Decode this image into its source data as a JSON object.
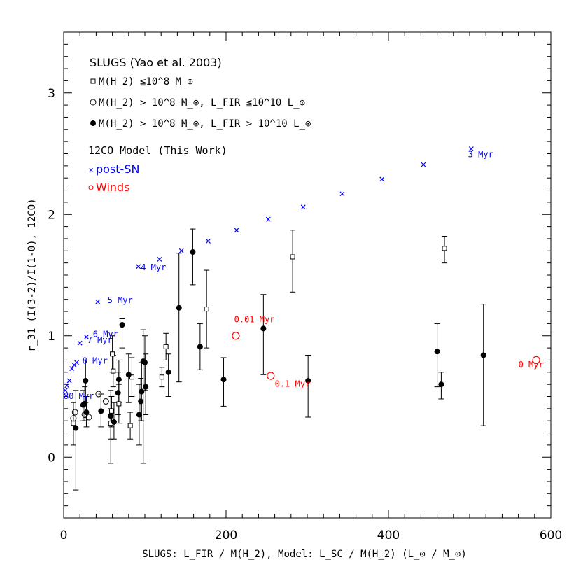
{
  "chart_data": {
    "type": "scatter",
    "xlabel": "SLUGS: L_FIR / M(H_2), Model: L_SC / M(H_2) (L_⊙ / M_⊙)",
    "ylabel": "r_31 (I(3-2)/I(1-0), 12CO)",
    "xlim": [
      0,
      600
    ],
    "ylim": [
      -0.5,
      3.5
    ],
    "xticks": [
      0,
      200,
      400,
      600
    ],
    "yticks": [
      0,
      1,
      2,
      3
    ],
    "grid": false,
    "legend": {
      "heading_slugs": "SLUGS (Yao et al. 2003)",
      "slugs_small": "M(H_2) ≦10^8 M_⊙",
      "slugs_open": "M(H_2) > 10^8 M_⊙, L_FIR ≦10^10 L_⊙",
      "slugs_filled": "M(H_2) > 10^8 M_⊙, L_FIR > 10^10 L_⊙",
      "heading_model": "12CO Model (This Work)",
      "post_sn": "post-SN",
      "winds": "Winds"
    },
    "colors": {
      "post_sn": "#0000ff",
      "winds": "#ff0000",
      "slugs": "#000000"
    },
    "series": [
      {
        "name": "post-SN",
        "marker": "cross",
        "x": [
          2,
          4,
          7,
          10,
          13,
          16,
          20,
          28,
          42,
          92,
          118,
          145,
          178,
          213,
          252,
          295,
          343,
          392,
          443,
          502
        ],
        "y": [
          0.55,
          0.59,
          0.63,
          0.73,
          0.76,
          0.78,
          0.94,
          0.99,
          1.28,
          1.57,
          1.63,
          1.7,
          1.78,
          1.87,
          1.96,
          2.06,
          2.17,
          2.29,
          2.41,
          2.54
        ],
        "labels": [
          {
            "text": "80 Myr",
            "x": 0,
            "y": 0.48
          },
          {
            "text": "8 Myr",
            "x": 23,
            "y": 0.77
          },
          {
            "text": "7 Myr",
            "x": 29,
            "y": 0.94
          },
          {
            "text": "6 Myr",
            "x": 36,
            "y": 0.99
          },
          {
            "text": "5 Myr",
            "x": 54,
            "y": 1.27
          },
          {
            "text": "4 Myr",
            "x": 95,
            "y": 1.54
          },
          {
            "text": "3 Myr",
            "x": 498,
            "y": 2.47
          }
        ]
      },
      {
        "name": "Winds",
        "marker": "open-circle",
        "x": [
          212,
          255,
          582
        ],
        "y": [
          1.0,
          0.67,
          0.8
        ],
        "labels": [
          {
            "text": "0.01 Myr",
            "x": 210,
            "y": 1.11
          },
          {
            "text": "0.1 Myr",
            "x": 260,
            "y": 0.58
          },
          {
            "text": "0 Myr",
            "x": 560,
            "y": 0.74
          }
        ]
      },
      {
        "name": "M(H_2) ≦10^8 M_⊙",
        "marker": "open-square",
        "points": [
          {
            "x": 12,
            "y": 0.28,
            "lo": 0.1,
            "hi": 0.45
          },
          {
            "x": 58,
            "y": 0.28,
            "lo": 0.15,
            "hi": 0.4
          },
          {
            "x": 59,
            "y": 0.38,
            "lo": 0.25,
            "hi": 0.5
          },
          {
            "x": 60,
            "y": 0.85,
            "lo": 0.7,
            "hi": 1.0
          },
          {
            "x": 61,
            "y": 0.71,
            "lo": 0.58,
            "hi": 0.84
          },
          {
            "x": 68,
            "y": 0.44,
            "lo": 0.28,
            "hi": 0.6
          },
          {
            "x": 82,
            "y": 0.26,
            "lo": 0.15,
            "hi": 0.37
          },
          {
            "x": 84,
            "y": 0.66,
            "lo": 0.5,
            "hi": 0.82
          },
          {
            "x": 121,
            "y": 0.66,
            "lo": 0.58,
            "hi": 0.74
          },
          {
            "x": 126,
            "y": 0.91,
            "lo": 0.8,
            "hi": 1.02
          },
          {
            "x": 176,
            "y": 1.22,
            "lo": 0.9,
            "hi": 1.54
          },
          {
            "x": 282,
            "y": 1.65,
            "lo": 1.36,
            "hi": 1.87
          },
          {
            "x": 469,
            "y": 1.72,
            "lo": 1.6,
            "hi": 1.82
          }
        ]
      },
      {
        "name": "M(H_2) > 10^8 M_⊙, L_FIR ≦10^10 L_⊙",
        "marker": "open-circle",
        "points": [
          {
            "x": 12,
            "y": 0.32,
            "lo": 0.32,
            "hi": 0.32
          },
          {
            "x": 14,
            "y": 0.37,
            "lo": 0.37,
            "hi": 0.37
          },
          {
            "x": 26,
            "y": 0.35,
            "lo": 0.35,
            "hi": 0.35
          },
          {
            "x": 31,
            "y": 0.33,
            "lo": 0.33,
            "hi": 0.33
          },
          {
            "x": 43,
            "y": 0.52,
            "lo": 0.52,
            "hi": 0.52
          },
          {
            "x": 52,
            "y": 0.46,
            "lo": 0.46,
            "hi": 0.46
          }
        ]
      },
      {
        "name": "M(H_2) > 10^8 M_⊙, L_FIR > 10^10 L_⊙",
        "marker": "filled-circle",
        "points": [
          {
            "x": 15,
            "y": 0.24,
            "lo": -0.27,
            "hi": 0.55
          },
          {
            "x": 24,
            "y": 0.43,
            "lo": 0.3,
            "hi": 0.55
          },
          {
            "x": 26,
            "y": 0.44,
            "lo": 0.3,
            "hi": 0.58
          },
          {
            "x": 27,
            "y": 0.63,
            "lo": 0.45,
            "hi": 0.8
          },
          {
            "x": 28,
            "y": 0.37,
            "lo": 0.25,
            "hi": 0.5
          },
          {
            "x": 46,
            "y": 0.38,
            "lo": 0.25,
            "hi": 0.52
          },
          {
            "x": 58,
            "y": 0.34,
            "lo": -0.05,
            "hi": 0.55
          },
          {
            "x": 62,
            "y": 0.29,
            "lo": 0.15,
            "hi": 0.45
          },
          {
            "x": 67,
            "y": 0.53,
            "lo": 0.35,
            "hi": 0.7
          },
          {
            "x": 68,
            "y": 0.64,
            "lo": 0.45,
            "hi": 0.8
          },
          {
            "x": 72,
            "y": 1.09,
            "lo": 0.9,
            "hi": 1.14
          },
          {
            "x": 80,
            "y": 0.68,
            "lo": 0.45,
            "hi": 0.85
          },
          {
            "x": 93,
            "y": 0.35,
            "lo": 0.1,
            "hi": 0.6
          },
          {
            "x": 95,
            "y": 0.46,
            "lo": 0.3,
            "hi": 0.65
          },
          {
            "x": 96,
            "y": 0.54,
            "lo": 0.3,
            "hi": 0.78
          },
          {
            "x": 98,
            "y": 0.79,
            "lo": -0.05,
            "hi": 1.05
          },
          {
            "x": 100,
            "y": 0.78,
            "lo": 0.55,
            "hi": 1.0
          },
          {
            "x": 101,
            "y": 0.58,
            "lo": 0.35,
            "hi": 0.85
          },
          {
            "x": 129,
            "y": 0.7,
            "lo": 0.5,
            "hi": 0.85
          },
          {
            "x": 142,
            "y": 1.23,
            "lo": 0.62,
            "hi": 1.68
          },
          {
            "x": 159,
            "y": 1.69,
            "lo": 1.42,
            "hi": 1.88
          },
          {
            "x": 168,
            "y": 0.91,
            "lo": 0.72,
            "hi": 1.1
          },
          {
            "x": 197,
            "y": 0.64,
            "lo": 0.42,
            "hi": 0.82
          },
          {
            "x": 246,
            "y": 1.06,
            "lo": 0.68,
            "hi": 1.34
          },
          {
            "x": 301,
            "y": 0.63,
            "lo": 0.33,
            "hi": 0.84
          },
          {
            "x": 460,
            "y": 0.87,
            "lo": 0.58,
            "hi": 1.1
          },
          {
            "x": 465,
            "y": 0.6,
            "lo": 0.48,
            "hi": 0.7
          },
          {
            "x": 517,
            "y": 0.84,
            "lo": 0.26,
            "hi": 1.26
          }
        ]
      }
    ]
  }
}
